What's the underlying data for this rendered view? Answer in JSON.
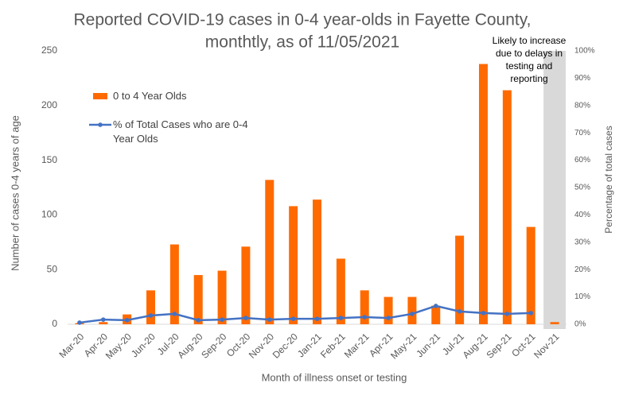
{
  "chart_data": {
    "type": "bar_line",
    "title": [
      "Reported COVID-19 cases in 0-4 year-olds in Fayette County,",
      "monthtly, as of 11/05/2021"
    ],
    "annotation": [
      "Likely to increase",
      "due to delays in",
      "testing and",
      "reporting"
    ],
    "x_label": "Month of illness onset or testing",
    "y_label": "Number of cases 0-4 years of age",
    "y2_label": "Percentage of total cases",
    "categories": [
      "Mar-20",
      "Apr-20",
      "May-20",
      "Jun-20",
      "Jul-20",
      "Aug-20",
      "Sep-20",
      "Oct-20",
      "Nov-20",
      "Dec-20",
      "Jan-21",
      "Feb-21",
      "Mar-21",
      "Apr-21",
      "May-21",
      "Jun-21",
      "Jul-21",
      "Aug-21",
      "Sep-21",
      "Oct-21",
      "Nov-21"
    ],
    "series": [
      {
        "name": "0 to 4 Year Olds",
        "type": "bar",
        "color": "#ff6a00",
        "values": [
          1,
          2,
          9,
          31,
          73,
          45,
          49,
          71,
          132,
          108,
          114,
          60,
          31,
          25,
          25,
          17,
          81,
          238,
          214,
          89,
          2
        ]
      },
      {
        "name": "% of Total Cases who are 0-4 Year Olds",
        "type": "line",
        "axis": "y2",
        "color": "#4472c4",
        "values": [
          0.6,
          1.7,
          1.5,
          3.2,
          3.8,
          1.5,
          1.7,
          2.3,
          1.7,
          2,
          2,
          2.3,
          2.6,
          2.3,
          3.8,
          6.7,
          4.7,
          4.1,
          3.8,
          4.1,
          null
        ]
      }
    ],
    "ylim": [
      0,
      250
    ],
    "yticks": [
      0,
      50,
      100,
      150,
      200,
      250
    ],
    "y2lim": [
      0,
      100
    ],
    "y2ticks": [
      {
        "value": 0,
        "label": "0%"
      },
      {
        "value": 10,
        "label": "10%"
      },
      {
        "value": 20,
        "label": "20%"
      },
      {
        "value": 30,
        "label": "30%"
      },
      {
        "value": 40,
        "label": "40%"
      },
      {
        "value": 50,
        "label": "50%"
      },
      {
        "value": 60,
        "label": "60%"
      },
      {
        "value": 70,
        "label": "70%"
      },
      {
        "value": 80,
        "label": "80%"
      },
      {
        "value": 90,
        "label": "90%"
      },
      {
        "value": 100,
        "label": "100%"
      }
    ],
    "grid": false
  }
}
